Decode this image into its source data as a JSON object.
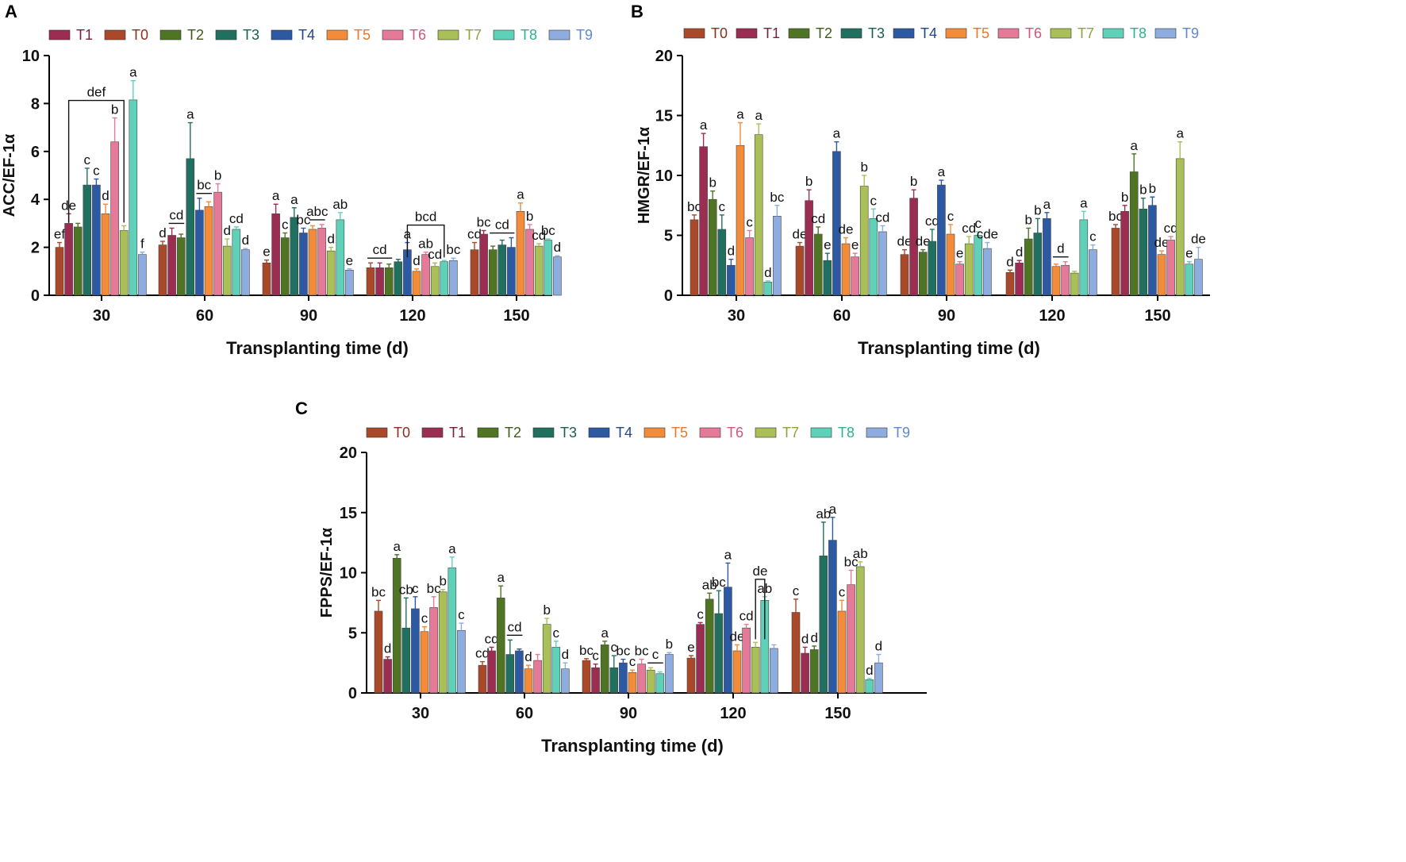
{
  "chart_data": [
    {
      "panel": "A",
      "type": "bar",
      "title": "",
      "xlabel": "Transplanting time (d)",
      "ylabel": "ACC/EF-1α",
      "ylim": [
        0,
        10
      ],
      "yticks": [
        0,
        2,
        4,
        6,
        8,
        10
      ],
      "categories": [
        "30",
        "60",
        "90",
        "120",
        "150"
      ],
      "legend": [
        "T1",
        "T0",
        "T2",
        "T3",
        "T4",
        "T5",
        "T6",
        "T7",
        "T8",
        "T9"
      ],
      "series": [
        {
          "name": "T0",
          "values": [
            2.0,
            2.1,
            1.35,
            1.15,
            1.9
          ],
          "errors": [
            0.2,
            0.15,
            0.12,
            0.2,
            0.3
          ],
          "letters": [
            "ef",
            "d",
            "e",
            "",
            "cd"
          ]
        },
        {
          "name": "T1",
          "values": [
            3.0,
            2.5,
            3.4,
            1.15,
            2.55
          ],
          "errors": [
            0.4,
            0.3,
            0.4,
            0.2,
            0.15
          ],
          "letters": [
            "de",
            "",
            "a",
            "",
            "bc"
          ]
        },
        {
          "name": "T2",
          "values": [
            2.85,
            2.4,
            2.4,
            1.15,
            1.9
          ],
          "errors": [
            0.15,
            0.15,
            0.2,
            0.15,
            0.15
          ],
          "letters": [
            "",
            "",
            "c",
            "",
            ""
          ]
        },
        {
          "name": "T3",
          "values": [
            4.6,
            5.7,
            3.25,
            1.4,
            2.1
          ],
          "errors": [
            0.7,
            1.5,
            0.4,
            0.1,
            0.2
          ],
          "letters": [
            "c",
            "a",
            "a",
            "",
            ""
          ]
        },
        {
          "name": "T4",
          "values": [
            4.6,
            3.55,
            2.6,
            1.9,
            2.0
          ],
          "errors": [
            0.25,
            0.5,
            0.2,
            0.3,
            0.4
          ],
          "letters": [
            "c",
            "",
            "bc",
            "a",
            ""
          ]
        },
        {
          "name": "T5",
          "values": [
            3.4,
            3.7,
            2.75,
            1.0,
            3.5
          ],
          "errors": [
            0.4,
            0.2,
            0.15,
            0.1,
            0.35
          ],
          "letters": [
            "d",
            "",
            "",
            "d",
            "a"
          ]
        },
        {
          "name": "T6",
          "values": [
            6.4,
            4.3,
            2.8,
            1.7,
            2.75
          ],
          "errors": [
            1.0,
            0.35,
            0.15,
            0.1,
            0.2
          ],
          "letters": [
            "b",
            "b",
            "",
            "ab",
            "b"
          ]
        },
        {
          "name": "T7",
          "values": [
            2.7,
            2.05,
            1.85,
            1.2,
            2.05
          ],
          "errors": [
            0.2,
            0.3,
            0.15,
            0.15,
            0.1
          ],
          "letters": [
            "",
            "d",
            "d",
            "cd",
            "cd"
          ]
        },
        {
          "name": "T8",
          "values": [
            8.15,
            2.75,
            3.15,
            1.4,
            2.3
          ],
          "errors": [
            0.8,
            0.1,
            0.3,
            0.05,
            0.05
          ],
          "letters": [
            "a",
            "cd",
            "ab",
            "",
            "bc"
          ]
        },
        {
          "name": "T9",
          "values": [
            1.7,
            1.9,
            1.05,
            1.45,
            1.6
          ],
          "errors": [
            0.1,
            0.05,
            0.05,
            0.1,
            0.05
          ],
          "letters": [
            "f",
            "d",
            "e",
            "bc",
            "d"
          ]
        }
      ],
      "group_marks": [
        {
          "label": "def",
          "category": "30",
          "from": "T1",
          "to": "T7",
          "style": "bracket"
        },
        {
          "label": "cd",
          "category": "60",
          "from": "T1",
          "to": "T2",
          "style": "line"
        },
        {
          "label": "bc",
          "category": "60",
          "from": "T4",
          "to": "T5",
          "style": "line"
        },
        {
          "label": "abc",
          "category": "90",
          "from": "T5",
          "to": "T6",
          "style": "line"
        },
        {
          "label": "cd",
          "category": "120",
          "from": "T0",
          "to": "T2",
          "style": "line"
        },
        {
          "label": "bcd",
          "category": "120",
          "from": "T4",
          "to": "T8",
          "style": "bracket"
        },
        {
          "label": "cd",
          "category": "150",
          "from": "T2",
          "to": "T4",
          "style": "line"
        }
      ]
    },
    {
      "panel": "B",
      "type": "bar",
      "title": "",
      "xlabel": "Transplanting time (d)",
      "ylabel": "HMGR/EF-1α",
      "ylim": [
        0,
        20
      ],
      "yticks": [
        0,
        5,
        10,
        15,
        20
      ],
      "categories": [
        "30",
        "60",
        "90",
        "120",
        "150"
      ],
      "legend": [
        "T0",
        "T1",
        "T2",
        "T3",
        "T4",
        "T5",
        "T6",
        "T7",
        "T8",
        "T9"
      ],
      "series": [
        {
          "name": "T0",
          "values": [
            6.3,
            4.1,
            3.4,
            1.9,
            5.6
          ],
          "errors": [
            0.4,
            0.3,
            0.4,
            0.2,
            0.3
          ],
          "letters": [
            "bc",
            "de",
            "de",
            "d",
            "bc"
          ]
        },
        {
          "name": "T1",
          "values": [
            12.4,
            7.9,
            8.1,
            2.7,
            7.0
          ],
          "errors": [
            1.1,
            0.9,
            0.7,
            0.2,
            0.5
          ],
          "letters": [
            "a",
            "b",
            "b",
            "d",
            "b"
          ]
        },
        {
          "name": "T2",
          "values": [
            8.0,
            5.1,
            3.6,
            4.7,
            10.3
          ],
          "errors": [
            0.7,
            0.6,
            0.2,
            0.9,
            1.5
          ],
          "letters": [
            "b",
            "cd",
            "de",
            "b",
            "a"
          ]
        },
        {
          "name": "T3",
          "values": [
            5.5,
            2.9,
            4.5,
            5.2,
            7.2
          ],
          "errors": [
            1.2,
            0.6,
            1.0,
            1.2,
            0.9
          ],
          "letters": [
            "c",
            "e",
            "cd",
            "b",
            "b"
          ]
        },
        {
          "name": "T4",
          "values": [
            2.5,
            12.0,
            9.2,
            6.4,
            7.5
          ],
          "errors": [
            0.5,
            0.8,
            0.4,
            0.5,
            0.7
          ],
          "letters": [
            "d",
            "a",
            "a",
            "a",
            "b"
          ]
        },
        {
          "name": "T5",
          "values": [
            12.5,
            4.3,
            5.1,
            2.4,
            3.4
          ],
          "errors": [
            1.9,
            0.5,
            0.8,
            0.2,
            0.3
          ],
          "letters": [
            "a",
            "de",
            "c",
            "",
            "de"
          ]
        },
        {
          "name": "T6",
          "values": [
            4.8,
            3.2,
            2.6,
            2.5,
            4.6
          ],
          "errors": [
            0.6,
            0.3,
            0.2,
            0.3,
            0.3
          ],
          "letters": [
            "c",
            "e",
            "e",
            "",
            "cd"
          ]
        },
        {
          "name": "T7",
          "values": [
            13.4,
            9.1,
            4.3,
            1.85,
            11.4
          ],
          "errors": [
            0.9,
            0.9,
            0.6,
            0.15,
            1.4
          ],
          "letters": [
            "a",
            "b",
            "cd",
            "",
            "a"
          ]
        },
        {
          "name": "T8",
          "values": [
            1.1,
            6.4,
            5.0,
            6.3,
            2.6
          ],
          "errors": [
            0.1,
            0.8,
            0.3,
            0.7,
            0.2
          ],
          "letters": [
            "d",
            "c",
            "c",
            "a",
            "e"
          ]
        },
        {
          "name": "T9",
          "values": [
            6.6,
            5.3,
            3.9,
            3.8,
            3.0
          ],
          "errors": [
            0.9,
            0.5,
            0.5,
            0.4,
            1.0
          ],
          "letters": [
            "bc",
            "cd",
            "cde",
            "c",
            "de"
          ]
        }
      ],
      "group_marks": [
        {
          "label": "d",
          "category": "120",
          "from": "T5",
          "to": "T6",
          "style": "line"
        }
      ]
    },
    {
      "panel": "C",
      "type": "bar",
      "title": "",
      "xlabel": "Transplanting time (d)",
      "ylabel": "FPPS/EF-1α",
      "ylim": [
        0,
        20
      ],
      "yticks": [
        0,
        5,
        10,
        15,
        20
      ],
      "categories": [
        "30",
        "60",
        "90",
        "120",
        "150"
      ],
      "legend": [
        "T0",
        "T1",
        "T2",
        "T3",
        "T4",
        "T5",
        "T6",
        "T7",
        "T8",
        "T9"
      ],
      "series": [
        {
          "name": "T0",
          "values": [
            6.8,
            2.3,
            2.7,
            2.9,
            6.7
          ],
          "errors": [
            0.9,
            0.3,
            0.15,
            0.2,
            1.1
          ],
          "letters": [
            "bc",
            "cd",
            "bc",
            "e",
            "c"
          ]
        },
        {
          "name": "T1",
          "values": [
            2.8,
            3.5,
            2.1,
            5.7,
            3.3
          ],
          "errors": [
            0.2,
            0.3,
            0.3,
            0.15,
            0.5
          ],
          "letters": [
            "d",
            "cd",
            "c",
            "c",
            "d"
          ]
        },
        {
          "name": "T2",
          "values": [
            11.2,
            7.9,
            4.0,
            7.8,
            3.6
          ],
          "errors": [
            0.3,
            1.0,
            0.3,
            0.5,
            0.3
          ],
          "letters": [
            "a",
            "a",
            "a",
            "ab",
            "d"
          ]
        },
        {
          "name": "T3",
          "values": [
            5.4,
            3.2,
            2.1,
            6.6,
            11.4
          ],
          "errors": [
            2.5,
            1.2,
            1.0,
            1.9,
            2.8
          ],
          "letters": [
            "cb",
            "",
            "c",
            "bc",
            "ab"
          ]
        },
        {
          "name": "T4",
          "values": [
            7.0,
            3.5,
            2.5,
            8.8,
            12.7
          ],
          "errors": [
            1.0,
            0.15,
            0.3,
            2.0,
            1.9
          ],
          "letters": [
            "c",
            "",
            "bc",
            "a",
            "a"
          ]
        },
        {
          "name": "T5",
          "values": [
            5.1,
            2.0,
            1.7,
            3.5,
            6.8
          ],
          "errors": [
            0.4,
            0.3,
            0.2,
            0.5,
            0.9
          ],
          "letters": [
            "c",
            "d",
            "c",
            "de",
            "c"
          ]
        },
        {
          "name": "T6",
          "values": [
            7.1,
            2.7,
            2.4,
            5.4,
            9.0
          ],
          "errors": [
            0.9,
            0.5,
            0.4,
            0.3,
            1.2
          ],
          "letters": [
            "bc",
            "",
            "bc",
            "cd",
            "bc"
          ]
        },
        {
          "name": "T7",
          "values": [
            8.4,
            5.7,
            1.9,
            3.8,
            10.5
          ],
          "errors": [
            0.2,
            0.5,
            0.2,
            0.4,
            0.4
          ],
          "letters": [
            "b",
            "b",
            "",
            "",
            "ab"
          ]
        },
        {
          "name": "T8",
          "values": [
            10.4,
            3.8,
            1.6,
            7.7,
            1.1
          ],
          "errors": [
            0.9,
            0.5,
            0.15,
            0.3,
            0.1
          ],
          "letters": [
            "a",
            "c",
            "",
            "ab",
            "d"
          ]
        },
        {
          "name": "T9",
          "values": [
            5.2,
            2.0,
            3.2,
            3.7,
            2.5
          ],
          "errors": [
            0.6,
            0.5,
            0.15,
            0.3,
            0.7
          ],
          "letters": [
            "c",
            "d",
            "b",
            "",
            "d"
          ]
        }
      ],
      "group_marks": [
        {
          "label": "cd",
          "category": "60",
          "from": "T3",
          "to": "T4",
          "style": "line"
        },
        {
          "label": "c",
          "category": "90",
          "from": "T7",
          "to": "T8",
          "style": "line"
        },
        {
          "label": "de",
          "category": "120",
          "from": "T7",
          "to": "T8",
          "style": "bracket"
        }
      ]
    }
  ],
  "figure": {
    "panel_labels": [
      "A",
      "B",
      "C"
    ],
    "series_colors": {
      "T0": "#a9492a",
      "T1": "#9b2d52",
      "T2": "#4f7424",
      "T3": "#21705f",
      "T4": "#2d59a3",
      "T5": "#f28c3b",
      "T6": "#e47a98",
      "T7": "#a9bf58",
      "T8": "#5fd1b8",
      "T9": "#8eadde"
    },
    "legend_text_colors": {
      "T0": "#8c2d1f",
      "T1": "#7a1c3c",
      "T2": "#3f5a1a",
      "T3": "#1b5e4f",
      "T4": "#1f4488",
      "T5": "#e5782a",
      "T6": "#d0557a",
      "T7": "#8ea33c",
      "T8": "#2fae94",
      "T9": "#5f88cb"
    }
  }
}
